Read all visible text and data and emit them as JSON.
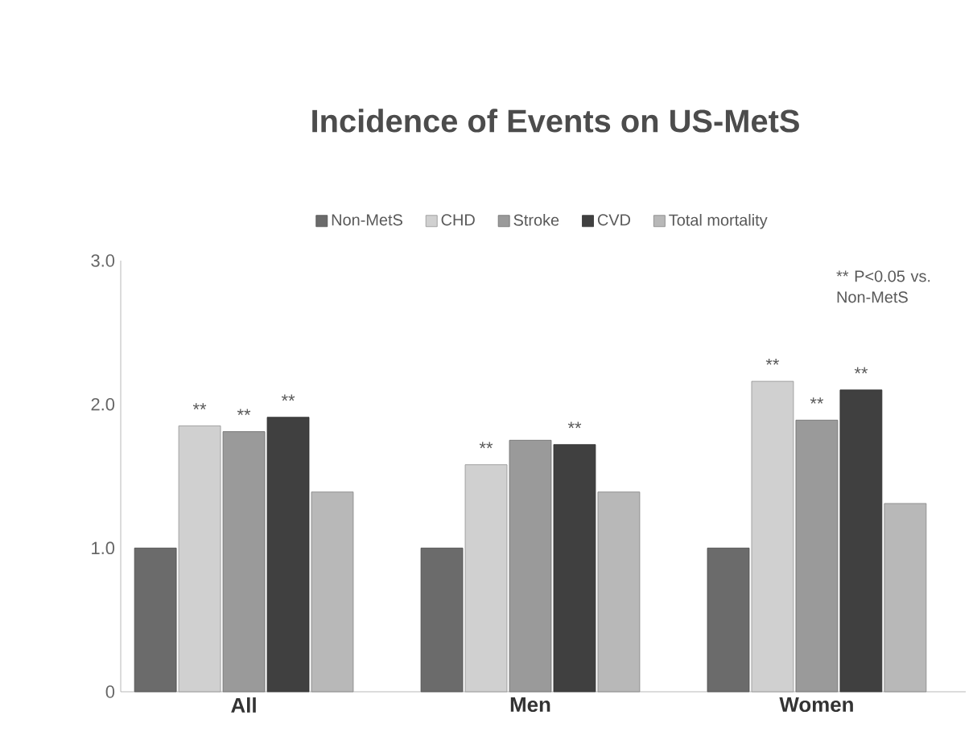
{
  "chart_data": {
    "type": "bar",
    "title": "Incidence of Events on US-MetS",
    "categories": [
      "All",
      "Men",
      "Women"
    ],
    "series": [
      {
        "name": "Non-MetS",
        "color": "#6b6b6b",
        "values": [
          1.0,
          1.0,
          1.0
        ]
      },
      {
        "name": "CHD",
        "color": "#d0d0d0",
        "values": [
          1.85,
          1.58,
          2.16
        ],
        "value_labels": [
          "**",
          "**",
          "**"
        ]
      },
      {
        "name": "Stroke",
        "color": "#9a9a9a",
        "values": [
          1.81,
          1.75,
          1.89
        ],
        "value_labels": [
          "**",
          null,
          "**"
        ]
      },
      {
        "name": "CVD",
        "color": "#404040",
        "values": [
          1.91,
          1.72,
          2.1
        ],
        "value_labels": [
          "**",
          "**",
          "**"
        ]
      },
      {
        "name": "Total mortality",
        "color": "#b8b8b8",
        "values": [
          1.39,
          1.39,
          1.31
        ]
      }
    ],
    "ylim": [
      0,
      3
    ],
    "yticks": [
      0,
      {
        "value": 1,
        "label": "1.0"
      },
      {
        "value": 2,
        "label": "2.0"
      },
      {
        "value": 3,
        "label": "3.0"
      }
    ],
    "legend": "top",
    "grid": false,
    "annotations": [
      "** P<0.05 vs. Non-MetS"
    ]
  }
}
